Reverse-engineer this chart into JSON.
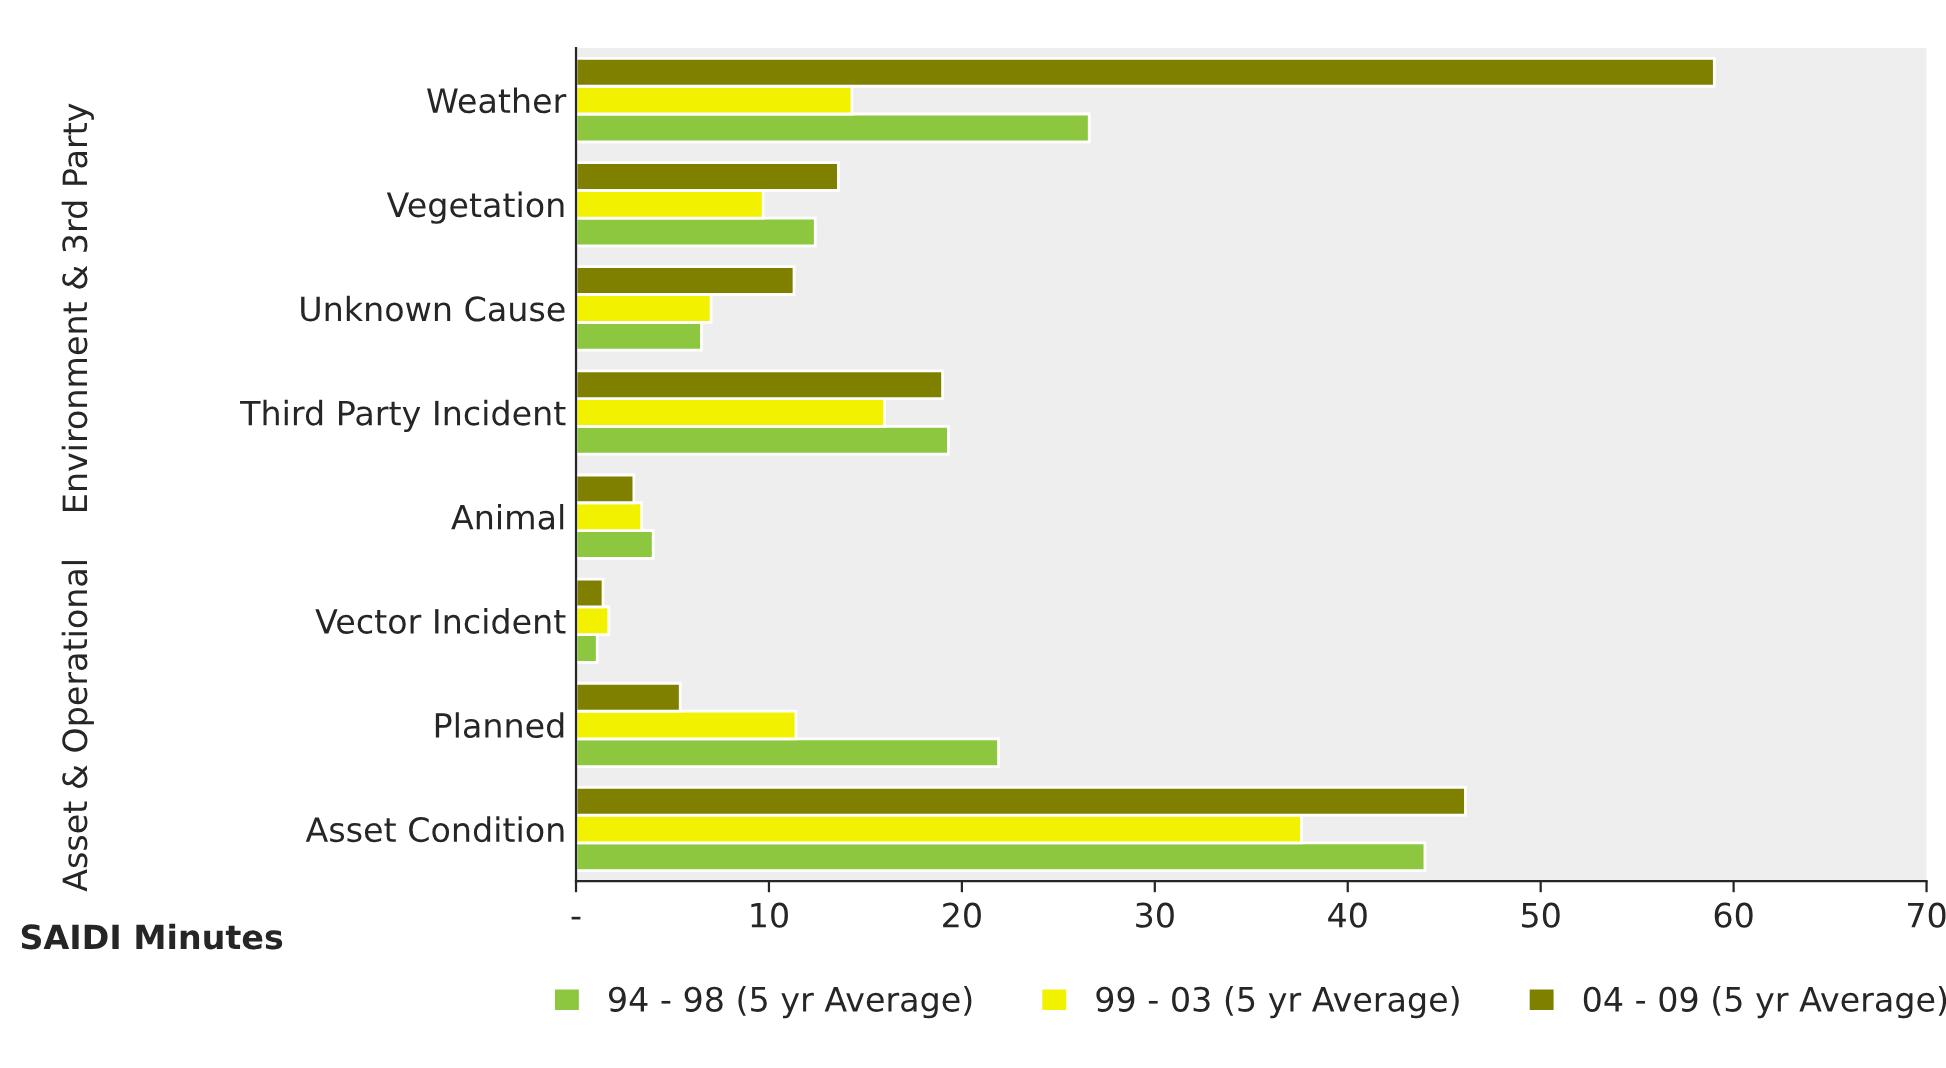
{
  "chart_data": {
    "type": "bar",
    "orientation": "horizontal",
    "categories": [
      "Weather",
      "Vegetation",
      "Unknown Cause",
      "Third Party Incident",
      "Animal",
      "Vector Incident",
      "Planned",
      "Asset Condition"
    ],
    "series": [
      {
        "name": "94 - 98 (5 yr Average)",
        "color": "#8dc63f",
        "values": [
          26.6,
          12.4,
          6.5,
          19.3,
          4.0,
          1.1,
          21.9,
          44.0
        ]
      },
      {
        "name": "99 - 03 (5 yr Average)",
        "color": "#f2f200",
        "values": [
          14.3,
          9.7,
          7.0,
          16.0,
          3.4,
          1.7,
          11.4,
          37.6
        ]
      },
      {
        "name": "04 - 09 (5 yr Average)",
        "color": "#808000",
        "values": [
          59.0,
          13.6,
          11.3,
          19.0,
          3.0,
          1.4,
          5.4,
          46.1
        ]
      }
    ],
    "xlabel": "SAIDI Minutes",
    "xlim": [
      0,
      70
    ],
    "xticks": [
      {
        "value": 0,
        "label": "-"
      },
      10,
      20,
      30,
      40,
      50,
      60,
      70
    ],
    "annotations": [
      "Environment & 3rd Party",
      "Asset & Operational"
    ],
    "legend": "bottom",
    "grid": false
  }
}
